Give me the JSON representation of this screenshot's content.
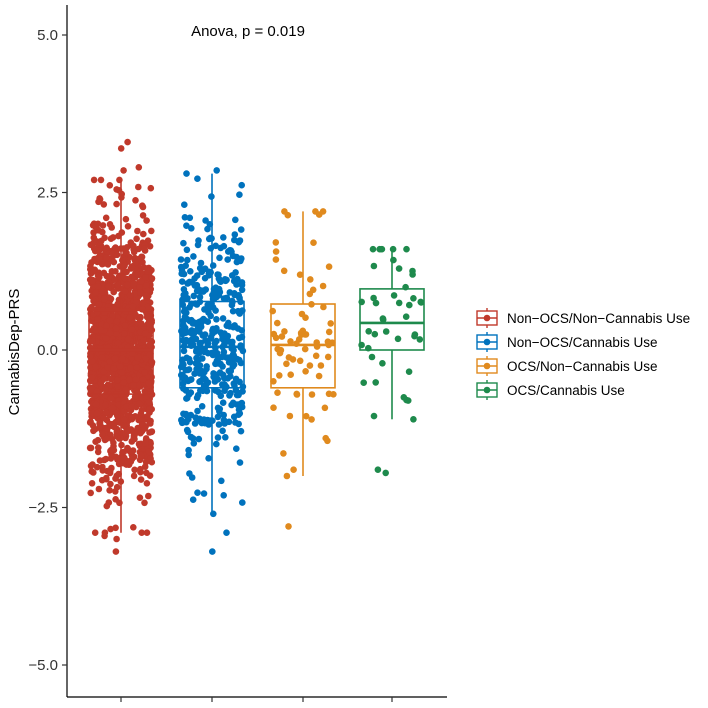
{
  "chart_data": {
    "type": "boxplot",
    "title": "",
    "xlabel": "",
    "ylabel": "CannabisDep-PRS",
    "ylim": [
      -5.5,
      5.5
    ],
    "yticks": [
      -5.0,
      -2.5,
      0.0,
      2.5,
      5.0
    ],
    "ytick_labels": [
      "−5.0",
      "−2.5",
      "0.0",
      "2.5",
      "5.0"
    ],
    "annotation": "Anova, p = 0.019",
    "legend_position": "right",
    "series": [
      {
        "name": "Non−OCS/Non−Cannabis Use",
        "color": "#C0392B",
        "q1": -0.7,
        "median": 0.0,
        "q3": 0.63,
        "whisker_low": -2.9,
        "whisker_high": 2.7,
        "n_points": 1500,
        "extra_points": [
          3.3,
          3.2,
          2.9,
          2.85,
          -2.95,
          -3.0,
          -3.2
        ]
      },
      {
        "name": "Non−OCS/Cannabis Use",
        "color": "#0072BD",
        "q1": -0.6,
        "median": 0.05,
        "q3": 0.77,
        "whisker_low": -2.6,
        "whisker_high": 2.8,
        "n_points": 420,
        "extra_points": [
          2.85,
          -2.9,
          -3.2
        ]
      },
      {
        "name": "OCS/Non−Cannabis Use",
        "color": "#E08A1E",
        "q1": -0.6,
        "median": 0.08,
        "q3": 0.73,
        "whisker_low": -2.0,
        "whisker_high": 2.2,
        "n_points": 70,
        "extra_points": [
          2.2,
          2.15,
          -1.9,
          -2.0,
          -2.8
        ]
      },
      {
        "name": "OCS/Cannabis Use",
        "color": "#1E8A4C",
        "q1": 0.0,
        "median": 0.43,
        "q3": 0.97,
        "whisker_low": -1.1,
        "whisker_high": 1.6,
        "n_points": 40,
        "extra_points": [
          1.6,
          -1.05,
          -1.9,
          -1.95
        ]
      }
    ]
  }
}
